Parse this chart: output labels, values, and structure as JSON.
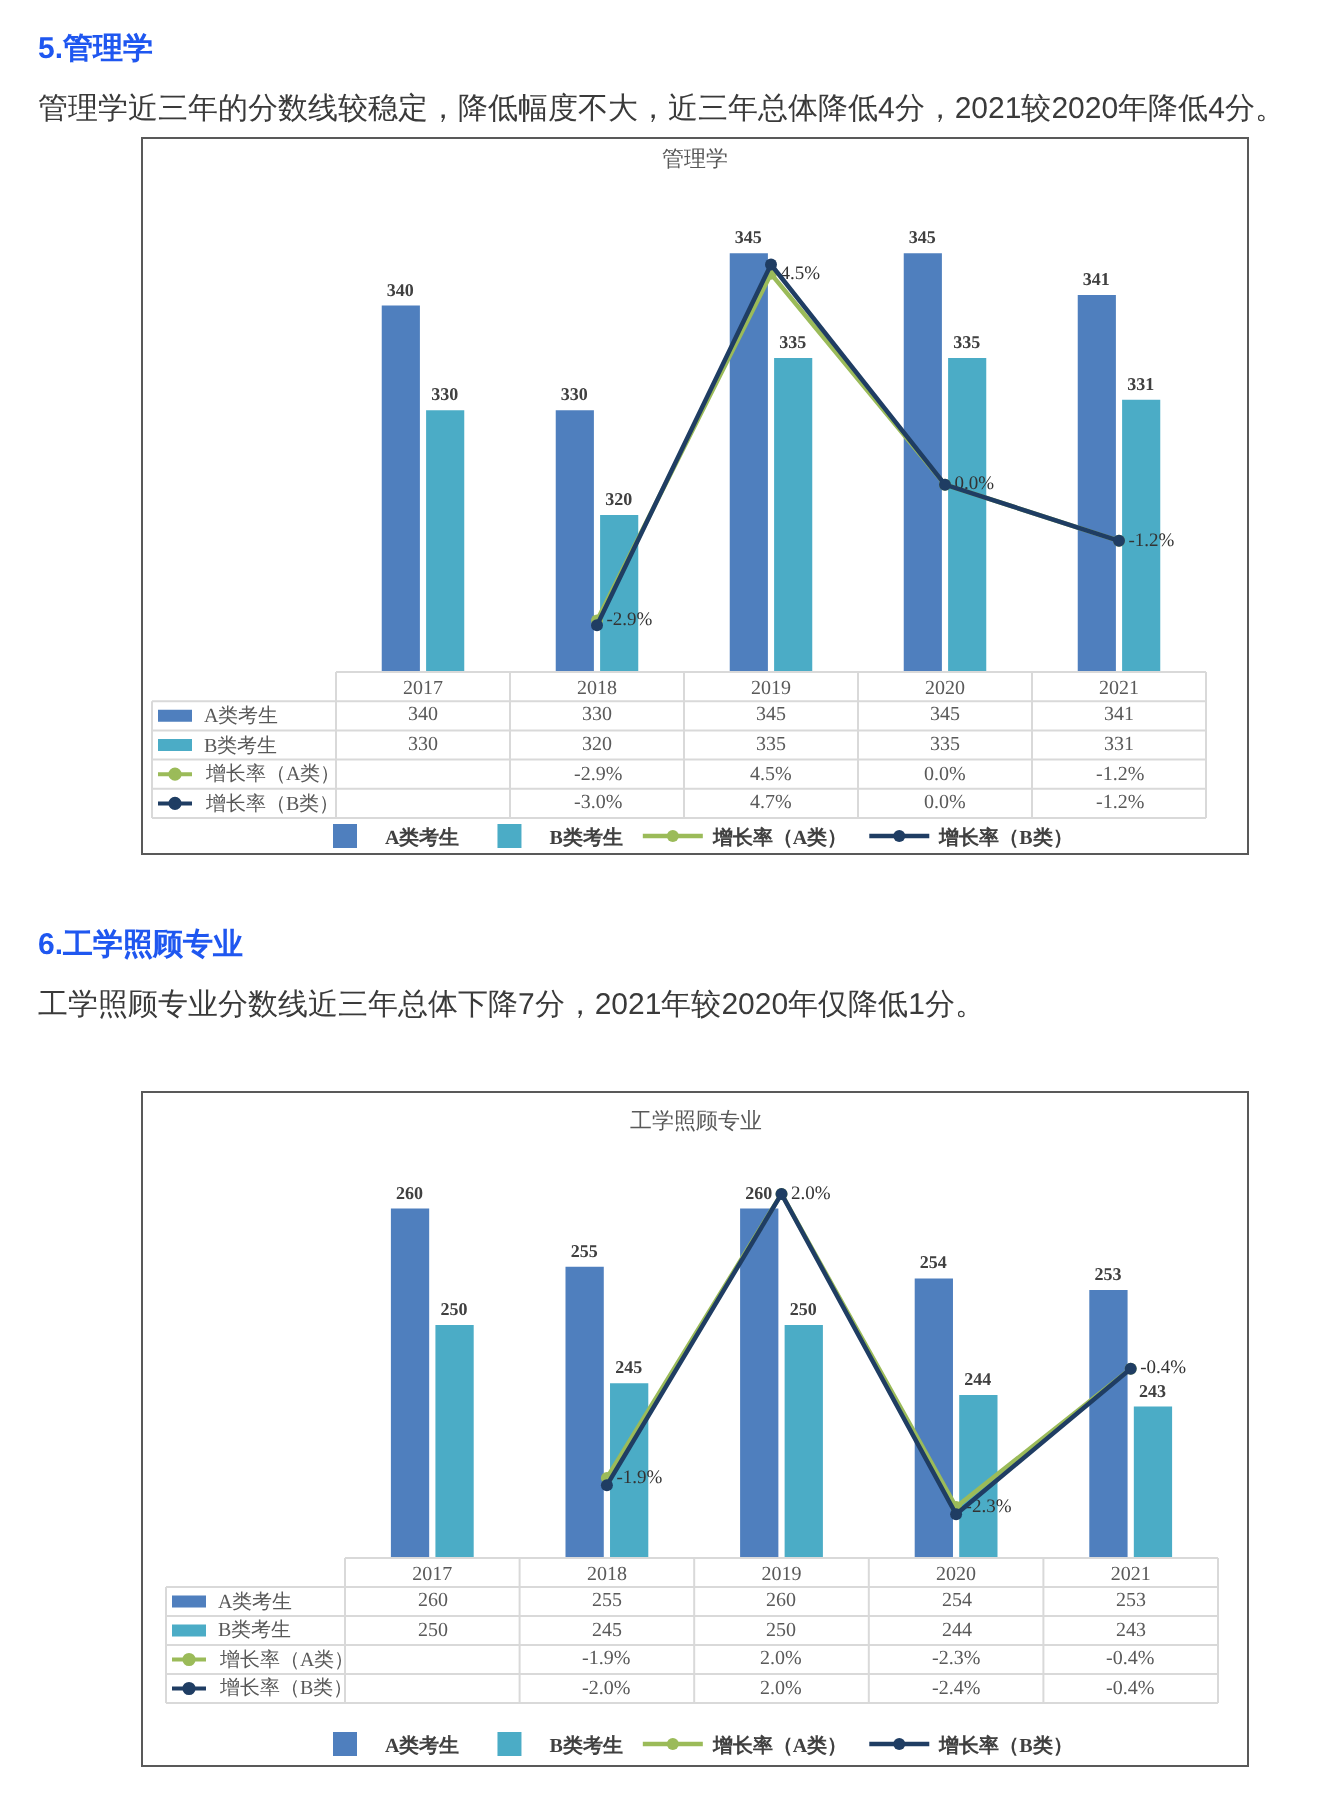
{
  "chart_data": [
    {
      "type": "bar",
      "title": "管理学",
      "annotations": [
        "5.管理学",
        "管理学近三年的分数线较稳定，降低幅度不大，近三年总体降低4分，2021较2020年降低4分。"
      ],
      "categories": [
        "2017",
        "2018",
        "2019",
        "2020",
        "2021"
      ],
      "ylim": [
        305,
        356
      ],
      "y2lim": [
        -4,
        7.4
      ],
      "tick_labels": "x",
      "legend": "bottom",
      "marker": "circle",
      "line_style": "solid",
      "series": [
        {
          "name": "A类考生",
          "color": "#4f7fbe",
          "values": [
            340,
            330,
            345,
            345,
            341
          ],
          "value_labels": [
            "340",
            "330",
            "345",
            "345",
            "341"
          ],
          "data_labels": true
        },
        {
          "name": "B类考生",
          "color": "#4bacc6",
          "values": [
            330,
            320,
            335,
            335,
            331
          ],
          "value_labels": [
            "330",
            "320",
            "335",
            "335",
            "331"
          ],
          "data_labels": true
        },
        {
          "name": "增长率（A类）",
          "type": "line",
          "axis": "y2",
          "color": "#9bbb59",
          "values": [
            null,
            -2.9,
            4.5,
            0.0,
            -1.2
          ],
          "value_labels": [
            null,
            "-2.9%",
            "4.5%",
            "0.0%",
            "-1.2%"
          ],
          "data_labels": true
        },
        {
          "name": "增长率（B类）",
          "type": "line",
          "axis": "y2",
          "color": "#1f3d63",
          "values": [
            null,
            -3.0,
            4.7,
            0.0,
            -1.2
          ],
          "value_labels": [
            null,
            "-3.0%",
            "4.7%",
            "0.0%",
            "-1.2%"
          ]
        }
      ]
    },
    {
      "type": "bar",
      "title": "工学照顾专业",
      "annotations": [
        "6.工学照顾专业",
        "工学照顾专业分数线近三年总体下降7分，2021年较2020年仅降低1分。"
      ],
      "categories": [
        "2017",
        "2018",
        "2019",
        "2020",
        "2021"
      ],
      "ylim": [
        230,
        270
      ],
      "y2lim": [
        -3,
        3.4
      ],
      "tick_labels": "x",
      "legend": "bottom",
      "marker": "circle",
      "line_style": "solid",
      "series": [
        {
          "name": "A类考生",
          "color": "#4f7fbe",
          "values": [
            260,
            255,
            260,
            254,
            253
          ],
          "value_labels": [
            "260",
            "255",
            "260",
            "254",
            "253"
          ],
          "data_labels": true
        },
        {
          "name": "B类考生",
          "color": "#4bacc6",
          "values": [
            250,
            245,
            250,
            244,
            243
          ],
          "value_labels": [
            "250",
            "245",
            "250",
            "244",
            "243"
          ],
          "data_labels": true
        },
        {
          "name": "增长率（A类）",
          "type": "line",
          "axis": "y2",
          "color": "#9bbb59",
          "values": [
            null,
            -1.9,
            2.0,
            -2.3,
            -0.4
          ],
          "value_labels": [
            null,
            "-1.9%",
            "2.0%",
            "-2.3%",
            "-0.4%"
          ],
          "data_labels": true
        },
        {
          "name": "增长率（B类）",
          "type": "line",
          "axis": "y2",
          "color": "#1f3d63",
          "values": [
            null,
            -2.0,
            2.0,
            -2.4,
            -0.4
          ],
          "value_labels": [
            null,
            "-2.0%",
            "2.0%",
            "-2.4%",
            "-0.4%"
          ]
        }
      ]
    }
  ]
}
